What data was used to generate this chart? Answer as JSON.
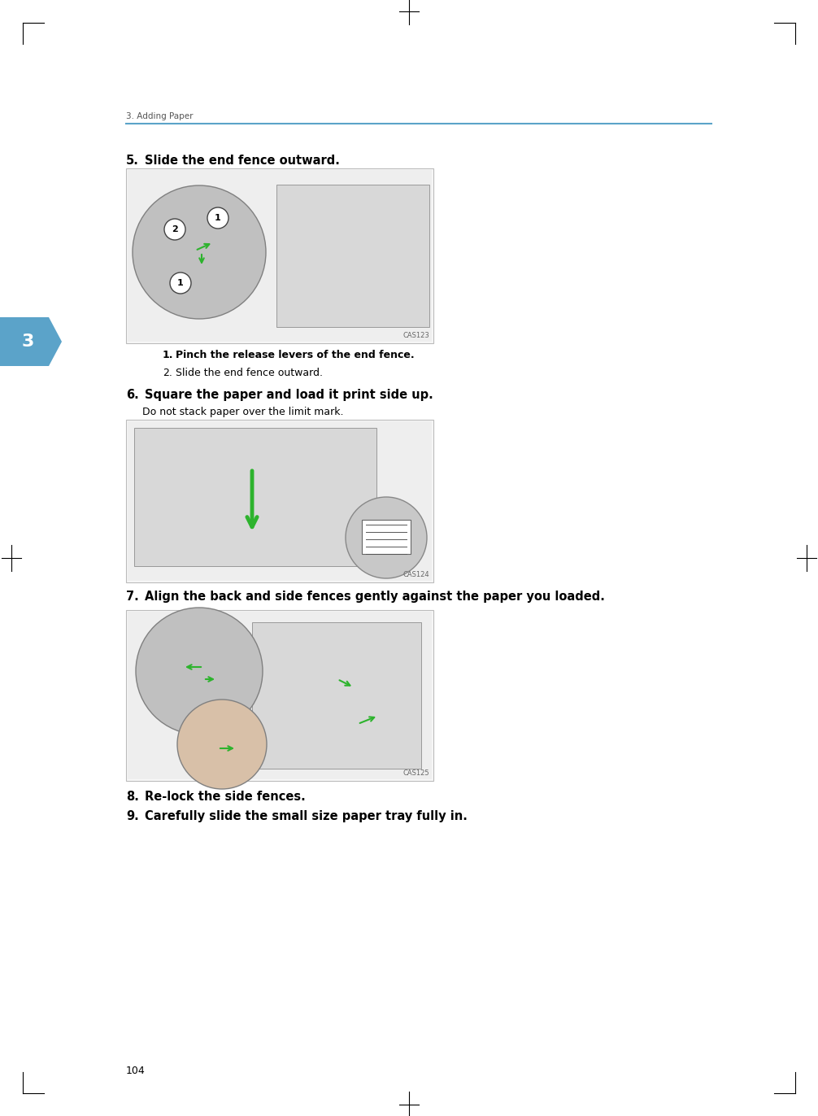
{
  "page_width": 10.06,
  "page_height": 13.72,
  "dpi": 100,
  "bg_color": "#ffffff",
  "header_text": "3. Adding Paper",
  "header_line_color": "#5ba3c9",
  "chapter_tab_color": "#5ba3c9",
  "chapter_tab_text": "3",
  "footer_text": "104",
  "image1_caption": "CAS123",
  "image2_caption": "CAS124",
  "image3_caption": "CAS125",
  "sub1_text": "1.   Pinch the release levers of the end fence.",
  "sub2_text": "2.   Slide the end fence outward.",
  "section5_heading": "5.   Slide the end fence outward.",
  "section6_heading": "6.   Square the paper and load it print side up.",
  "section6_sub": "Do not stack paper over the limit mark.",
  "section7_heading": "7.   Align the back and side fences gently against the paper you loaded.",
  "section8_heading": "8.   Re-lock the side fences.",
  "section9_heading": "9.   Carefully slide the small size paper tray fully in.",
  "green_color": "#2db32d",
  "gray_color": "#b0b0b0",
  "dark_gray": "#888888",
  "skin_color": "#e8c8a8",
  "caption_color": "#666666",
  "text_color": "#000000",
  "header_color": "#555555"
}
